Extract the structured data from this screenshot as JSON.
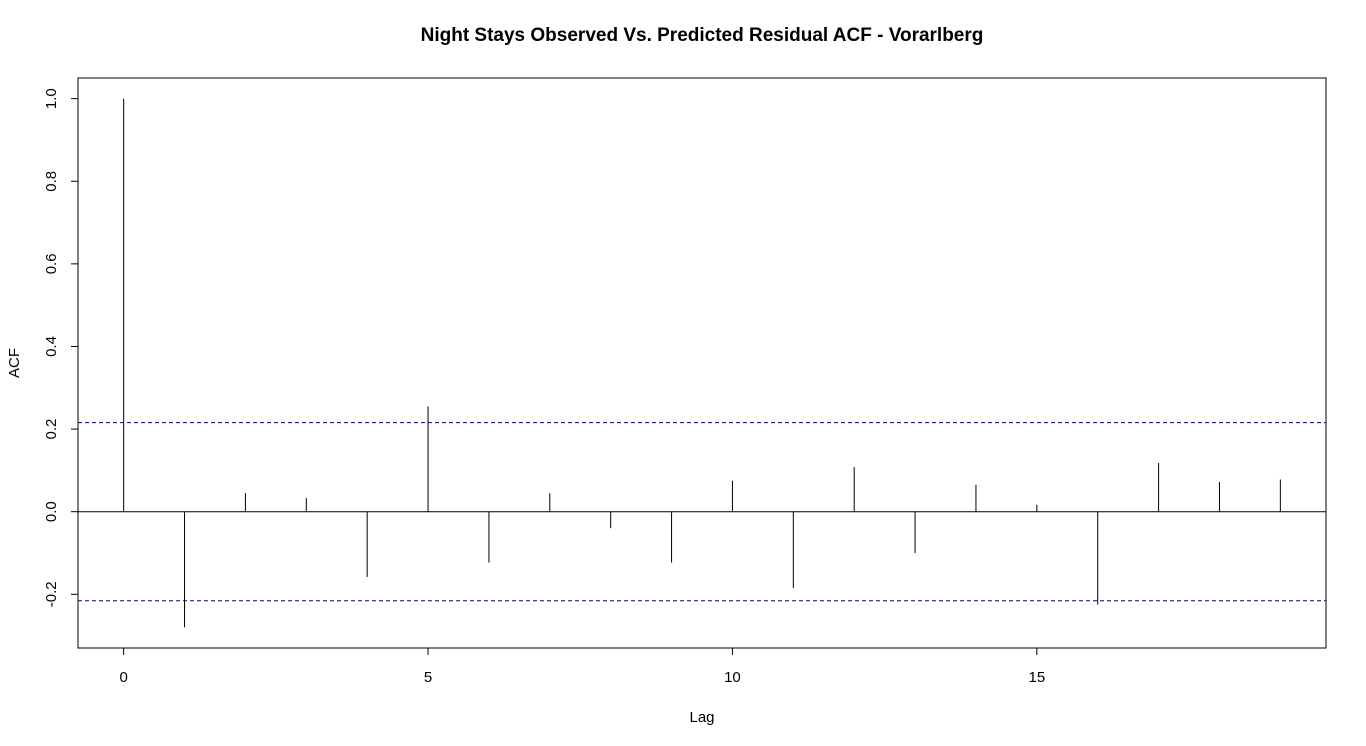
{
  "chart_data": {
    "type": "bar",
    "title": "Night Stays Observed Vs. Predicted Residual ACF - Vorarlberg",
    "xlabel": "Lag",
    "ylabel": "ACF",
    "x": [
      0,
      1,
      2,
      3,
      4,
      5,
      6,
      7,
      8,
      9,
      10,
      11,
      12,
      13,
      14,
      15,
      16,
      17,
      18,
      19
    ],
    "values": [
      1.0,
      -0.28,
      0.045,
      0.033,
      -0.158,
      0.255,
      -0.123,
      0.045,
      -0.04,
      -0.123,
      0.075,
      -0.185,
      0.108,
      -0.1,
      0.065,
      0.017,
      -0.225,
      0.118,
      0.072,
      0.078
    ],
    "xlim": [
      -0.75,
      19.75
    ],
    "ylim": [
      -0.33,
      1.05
    ],
    "x_ticks": [
      0,
      5,
      10,
      15
    ],
    "x_tick_labels": [
      "0",
      "5",
      "10",
      "15"
    ],
    "y_ticks": [
      -0.2,
      0.0,
      0.2,
      0.4,
      0.6,
      0.8,
      1.0
    ],
    "y_tick_labels": [
      "-0.2",
      "0.0",
      "0.2",
      "0.4",
      "0.6",
      "0.8",
      "1.0"
    ],
    "confidence_bound": 0.2155,
    "confidence_color": "#00008b",
    "bar_color": "#000000",
    "grid": false,
    "legend": "none"
  }
}
